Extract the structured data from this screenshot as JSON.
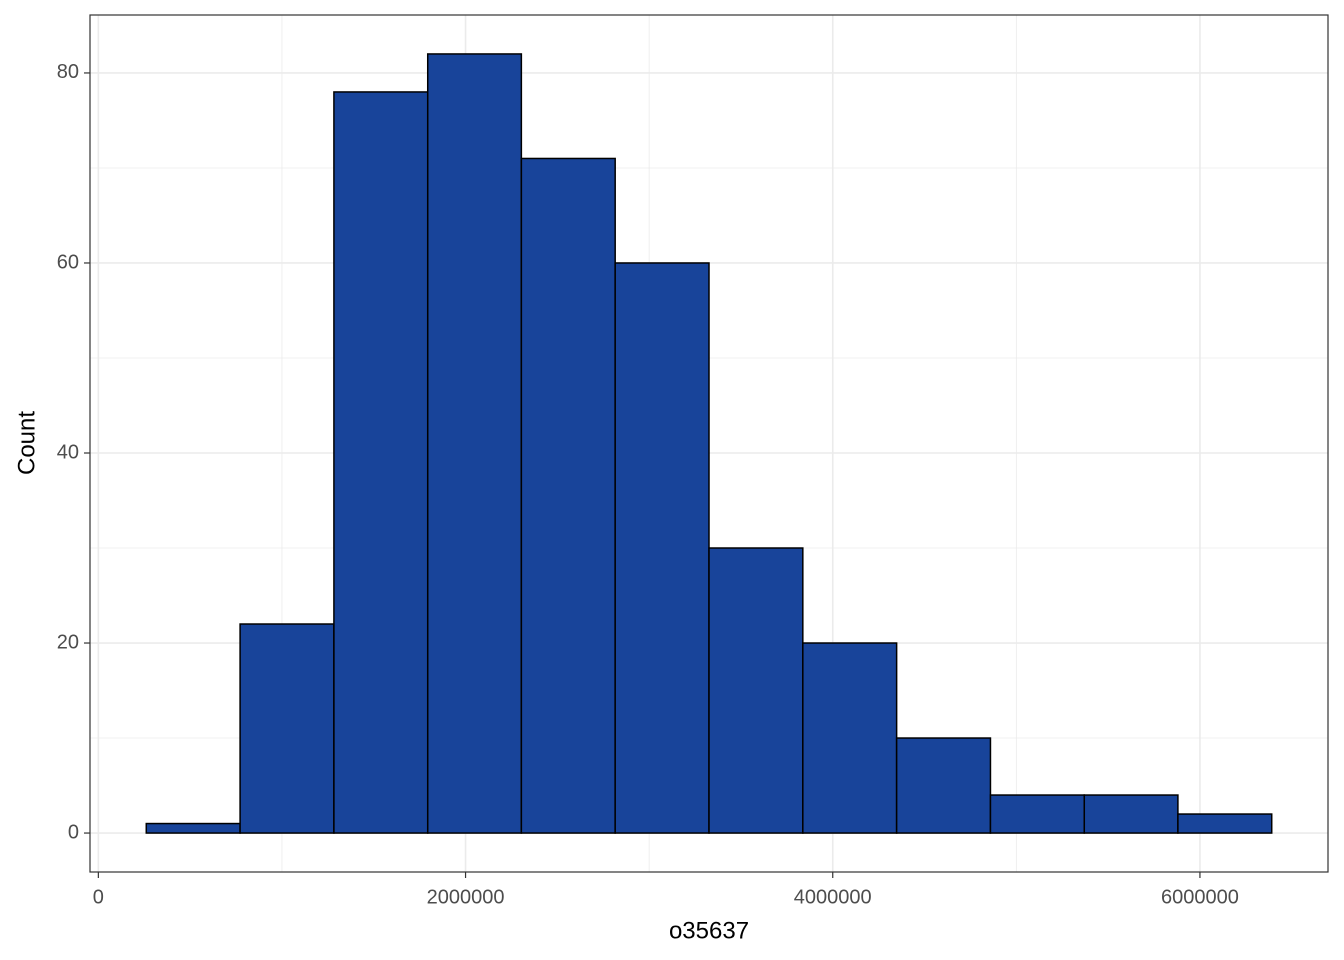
{
  "chart_data": {
    "type": "histogram",
    "x_label": "o35637",
    "y_label": "Count",
    "bins": [
      261000,
      772000,
      1283000,
      1794000,
      2304000,
      2815000,
      3326000,
      3837000,
      4348000,
      4859000,
      5370000,
      5880000,
      6391000
    ],
    "values": [
      1,
      22,
      78,
      82,
      71,
      60,
      30,
      20,
      10,
      4,
      4,
      2
    ],
    "color": "#18449a",
    "edge_color": "#000000",
    "xlim": [
      -45500,
      6697500
    ],
    "xticks": [
      0,
      2000000,
      4000000,
      6000000
    ],
    "minor_xticks": [
      1000000,
      3000000,
      5000000
    ],
    "ylim": [
      -4.1,
      86.1
    ],
    "yticks": [
      0,
      20,
      40,
      60,
      80
    ],
    "minor_yticks": [
      10,
      30,
      50,
      70
    ],
    "grid": true
  }
}
